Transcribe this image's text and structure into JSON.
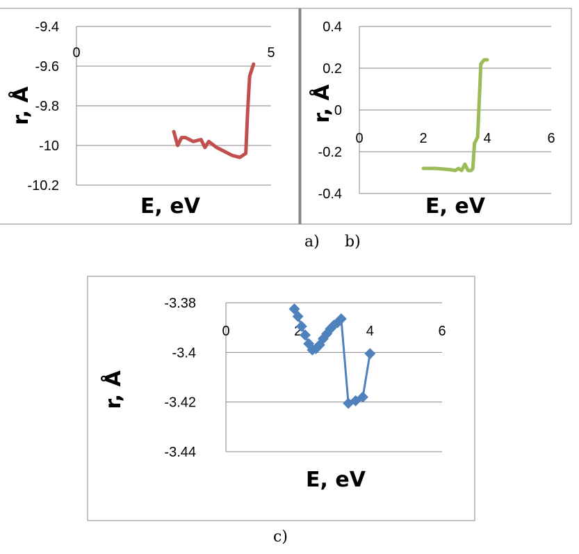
{
  "captions": {
    "a": "a)",
    "b": "b)",
    "c": "c)"
  },
  "colors": {
    "a": "#c0504d",
    "b": "#9bbb59",
    "c": "#4f81bd",
    "grid": "#868686",
    "frame": "#868686"
  },
  "chart_data": [
    {
      "type": "line",
      "xlabel": "E,  eV",
      "ylabel": "r, Å",
      "xlim": [
        0,
        5
      ],
      "ylim": [
        -10.2,
        -9.4
      ],
      "x_ticks": [
        "0",
        "5"
      ],
      "y_ticks": [
        "-9.4",
        "-9.6",
        "-9.8",
        "-10",
        "-10.2"
      ],
      "grid": true,
      "series": [
        {
          "markers": false,
          "x": [
            2.5,
            2.6,
            2.7,
            2.8,
            3.0,
            3.2,
            3.3,
            3.4,
            3.6,
            3.8,
            4.0,
            4.2,
            4.35,
            4.4,
            4.45,
            4.55
          ],
          "y": [
            -9.93,
            -10.0,
            -9.96,
            -9.96,
            -9.98,
            -9.97,
            -10.01,
            -9.98,
            -10.01,
            -10.03,
            -10.05,
            -10.06,
            -10.04,
            -9.82,
            -9.65,
            -9.59
          ]
        }
      ]
    },
    {
      "type": "line",
      "xlabel": "E, eV",
      "ylabel": "r, Å",
      "xlim": [
        0,
        6
      ],
      "ylim": [
        -0.4,
        0.4
      ],
      "x_ticks": [
        "0",
        "2",
        "4",
        "6"
      ],
      "y_ticks": [
        "0.4",
        "0.2",
        "0",
        "-0.2",
        "-0.4"
      ],
      "grid": true,
      "series": [
        {
          "markers": false,
          "x": [
            2.0,
            2.4,
            2.8,
            3.0,
            3.1,
            3.2,
            3.3,
            3.4,
            3.5,
            3.55,
            3.6,
            3.7,
            3.8,
            3.9,
            4.0
          ],
          "y": [
            -0.28,
            -0.28,
            -0.285,
            -0.29,
            -0.28,
            -0.29,
            -0.26,
            -0.29,
            -0.29,
            -0.28,
            -0.16,
            -0.13,
            0.22,
            0.24,
            0.24
          ]
        }
      ]
    },
    {
      "type": "line",
      "xlabel": "E,  eV",
      "ylabel": "r, Å",
      "xlim": [
        0,
        6
      ],
      "ylim": [
        -3.44,
        -3.38
      ],
      "x_ticks": [
        "0",
        "2",
        "4",
        "6"
      ],
      "y_ticks": [
        "-3.38",
        "-3.4",
        "-3.42",
        "-3.44"
      ],
      "grid": true,
      "series": [
        {
          "markers": true,
          "x": [
            1.9,
            2.0,
            2.1,
            2.2,
            2.3,
            2.4,
            2.5,
            2.6,
            2.7,
            2.8,
            2.9,
            3.0,
            3.1,
            3.2,
            3.4,
            3.6,
            3.8,
            4.0
          ],
          "y": [
            -3.3825,
            -3.3855,
            -3.3895,
            -3.393,
            -3.3965,
            -3.399,
            -3.3985,
            -3.397,
            -3.3945,
            -3.3925,
            -3.3905,
            -3.389,
            -3.388,
            -3.3865,
            -3.4205,
            -3.4195,
            -3.418,
            -3.4005
          ]
        }
      ]
    }
  ]
}
